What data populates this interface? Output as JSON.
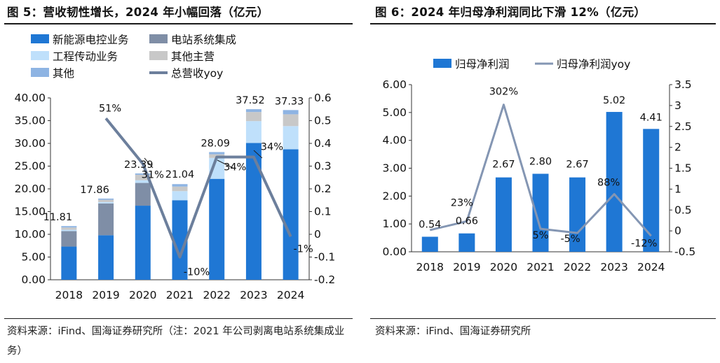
{
  "figure5": {
    "title": "图 5：营收韧性增长，2024 年小幅回落（亿元）",
    "source": "资料来源：iFind、国海证券研究所（注：2021 年公司剥离电站系统集成业务）"
  },
  "figure6": {
    "title": "图 6：2024 年归母净利润同比下滑 12%（亿元）",
    "source": "资料来源：iFind、国海证券研究所"
  },
  "chart_data": [
    {
      "type": "bar",
      "stacked": true,
      "categories": [
        "2018",
        "2019",
        "2020",
        "2021",
        "2022",
        "2023",
        "2024"
      ],
      "series": [
        {
          "name": "新能源电控业务",
          "kind": "bar",
          "color": "#1f77d4",
          "values": [
            7.3,
            9.8,
            16.3,
            17.5,
            22.2,
            30.1,
            28.7
          ]
        },
        {
          "name": "电站系统集成",
          "kind": "bar",
          "color": "#7f8ea6",
          "values": [
            3.4,
            7.0,
            5.0,
            0,
            0,
            0,
            0
          ]
        },
        {
          "name": "工程传动业务",
          "kind": "bar",
          "color": "#bfe0fb",
          "values": [
            0.3,
            0.3,
            0.6,
            2.0,
            4.6,
            4.8,
            5.1
          ]
        },
        {
          "name": "其他主营",
          "kind": "bar",
          "color": "#c8c8c8",
          "values": [
            0.5,
            0.5,
            1.2,
            1.0,
            0.8,
            2.0,
            2.6
          ]
        },
        {
          "name": "其他",
          "kind": "bar",
          "color": "#8eb4e3",
          "values": [
            0.31,
            0.26,
            0.29,
            0.54,
            0.49,
            0.62,
            0.93
          ]
        },
        {
          "name": "总营收yoy",
          "kind": "line",
          "color": "#6c7f9c",
          "axis": "y2",
          "values": [
            null,
            0.51,
            0.31,
            -0.1,
            0.34,
            0.34,
            -0.01
          ]
        }
      ],
      "totals": [
        11.81,
        17.86,
        23.39,
        21.04,
        28.09,
        37.52,
        37.33
      ],
      "total_labels": [
        "11.81",
        "17.86",
        "23.39",
        "21.04",
        "28.09",
        "37.52",
        "37.33"
      ],
      "yoy_labels": [
        "",
        "51%",
        "31%",
        "-10%",
        "34%",
        "34%",
        "-1%"
      ],
      "ylim": [
        0,
        40
      ],
      "yticks": [
        0,
        5,
        10,
        15,
        20,
        25,
        30,
        35,
        40
      ],
      "ytick_labels": [
        "0.00",
        "5.00",
        "10.00",
        "15.00",
        "20.00",
        "25.00",
        "30.00",
        "35.00",
        "40.00"
      ],
      "y2lim": [
        -0.2,
        0.6
      ],
      "y2ticks": [
        -0.2,
        -0.1,
        0,
        0.1,
        0.2,
        0.3,
        0.4,
        0.5,
        0.6
      ],
      "y2tick_labels": [
        "-0.2",
        "-0.1",
        "0",
        "0.1",
        "0.2",
        "0.3",
        "0.4",
        "0.5",
        "0.6"
      ],
      "legend": "top, two columns",
      "grid": false
    },
    {
      "type": "bar",
      "categories": [
        "2018",
        "2019",
        "2020",
        "2021",
        "2022",
        "2023",
        "2024"
      ],
      "series": [
        {
          "name": "归母净利润",
          "kind": "bar",
          "color": "#1f77d4",
          "values": [
            0.54,
            0.66,
            2.67,
            2.8,
            2.67,
            5.02,
            4.41
          ]
        },
        {
          "name": "归母净利润yoy",
          "kind": "line",
          "color": "#8496b3",
          "axis": "y2",
          "values": [
            0.02,
            0.23,
            3.02,
            0.05,
            -0.05,
            0.88,
            -0.12
          ]
        }
      ],
      "value_labels": [
        "0.54",
        "0.66",
        "2.67",
        "2.80",
        "2.67",
        "5.02",
        "4.41"
      ],
      "yoy_labels": [
        "",
        "23%",
        "302%",
        "5%",
        "-5%",
        "88%",
        "-12%"
      ],
      "ylim": [
        0,
        6
      ],
      "yticks": [
        0,
        1,
        2,
        3,
        4,
        5,
        6
      ],
      "ytick_labels": [
        "0.00",
        "1.00",
        "2.00",
        "3.00",
        "4.00",
        "5.00",
        "6.00"
      ],
      "y2lim": [
        -0.5,
        3.5
      ],
      "y2ticks": [
        -0.5,
        0,
        0.5,
        1,
        1.5,
        2,
        2.5,
        3,
        3.5
      ],
      "y2tick_labels": [
        "-0.5",
        "0",
        "0.5",
        "1",
        "1.5",
        "2",
        "2.5",
        "3",
        "3.5"
      ],
      "legend": "top",
      "grid": false
    }
  ]
}
